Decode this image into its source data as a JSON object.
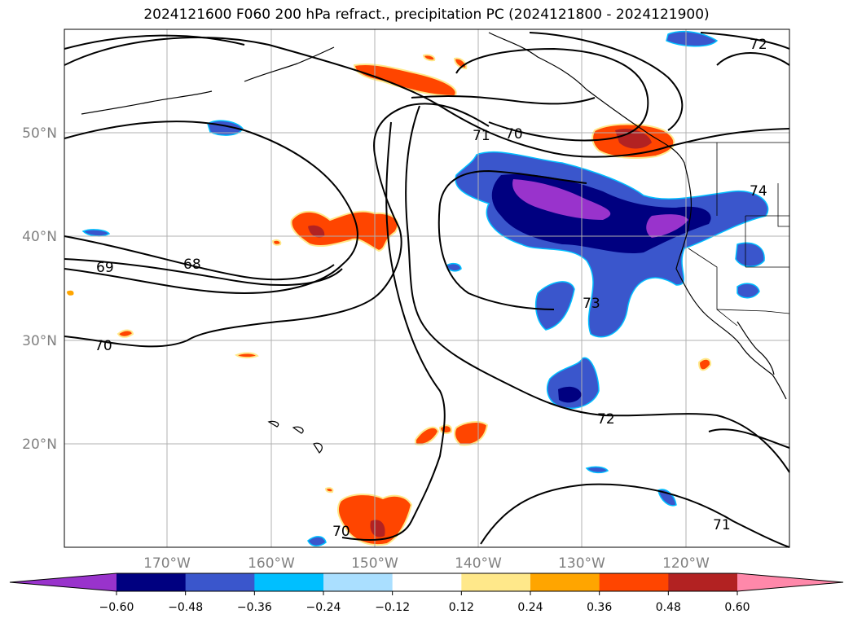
{
  "title": "2024121600 F060 200 hPa refract., precipitation PC (2024121800 - 2024121900)",
  "map": {
    "lon_labels": [
      "170°W",
      "160°W",
      "150°W",
      "140°W",
      "130°W",
      "120°W"
    ],
    "lat_labels": [
      "50°N",
      "40°N",
      "30°N",
      "20°N"
    ],
    "contour_labels": [
      "72",
      "70",
      "71",
      "74",
      "69",
      "68",
      "73",
      "70",
      "72",
      "70",
      "71"
    ]
  },
  "colorbar": {
    "ticks": [
      "−0.60",
      "−0.48",
      "−0.36",
      "−0.24",
      "−0.12",
      "0.12",
      "0.24",
      "0.36",
      "0.48",
      "0.60"
    ],
    "colors": [
      "#9933cc",
      "#000080",
      "#3a56cc",
      "#00bfff",
      "#aadfff",
      "#ffffff",
      "#ffe88a",
      "#ffa500",
      "#ff4500",
      "#b22222",
      "#ff88aa"
    ]
  }
}
